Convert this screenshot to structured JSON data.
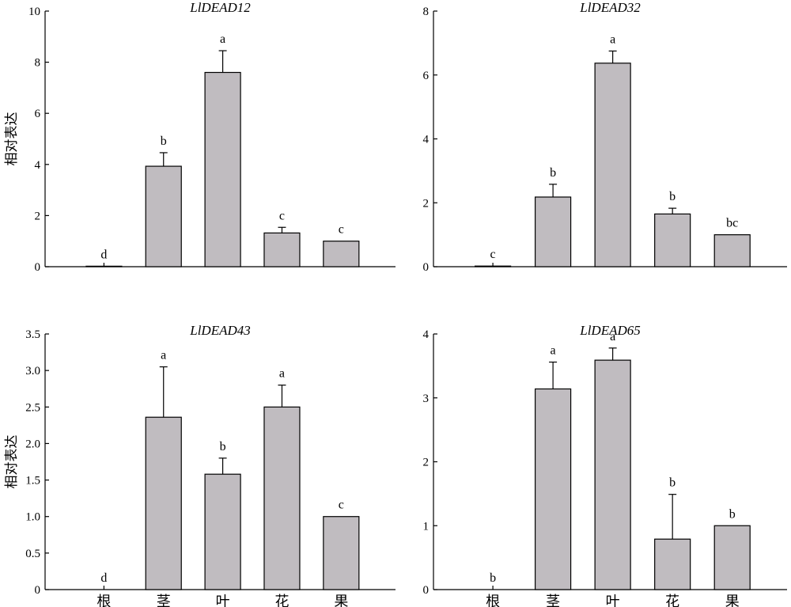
{
  "colors": {
    "bar_fill": "#c0bcc0",
    "stroke": "#000000"
  },
  "chart_data": [
    {
      "type": "bar",
      "title": "LlDEAD12",
      "ylabel": "相对表达",
      "xlabel": "",
      "categories": [
        "根",
        "茎",
        "叶",
        "花",
        "果"
      ],
      "values": [
        0.02,
        3.93,
        7.6,
        1.32,
        1.0
      ],
      "errors": [
        0.0,
        0.53,
        0.85,
        0.22,
        0.0
      ],
      "letters": [
        "d",
        "b",
        "a",
        "c",
        "c"
      ],
      "ylim": [
        0,
        10
      ],
      "yticks": [
        0,
        2,
        4,
        6,
        8,
        10
      ],
      "ytick_labels": [
        "0",
        "2",
        "4",
        "6",
        "8",
        "10"
      ],
      "show_category_labels": false
    },
    {
      "type": "bar",
      "title": "LlDEAD32",
      "ylabel": "",
      "xlabel": "",
      "categories": [
        "根",
        "茎",
        "叶",
        "花",
        "果"
      ],
      "values": [
        0.02,
        2.18,
        6.37,
        1.65,
        1.0
      ],
      "errors": [
        0.0,
        0.4,
        0.38,
        0.18,
        0.0
      ],
      "letters": [
        "c",
        "b",
        "a",
        "b",
        "bc"
      ],
      "ylim": [
        0,
        8
      ],
      "yticks": [
        0,
        2,
        4,
        6,
        8
      ],
      "ytick_labels": [
        "0",
        "2",
        "4",
        "6",
        "8"
      ],
      "show_category_labels": false
    },
    {
      "type": "bar",
      "title": "LlDEAD43",
      "ylabel": "相对表达",
      "xlabel": "",
      "categories": [
        "根",
        "茎",
        "叶",
        "花",
        "果"
      ],
      "values": [
        0.0,
        2.36,
        1.58,
        2.5,
        1.0
      ],
      "errors": [
        0.0,
        0.69,
        0.22,
        0.3,
        0.0
      ],
      "letters": [
        "d",
        "a",
        "b",
        "a",
        "c"
      ],
      "ylim": [
        0,
        3.5
      ],
      "yticks": [
        0,
        0.5,
        1.0,
        1.5,
        2.0,
        2.5,
        3.0,
        3.5
      ],
      "ytick_labels": [
        "0",
        "0.5",
        "1.0",
        "1.5",
        "2.0",
        "2.5",
        "3.0",
        "3.5"
      ],
      "show_category_labels": true
    },
    {
      "type": "bar",
      "title": "LlDEAD65",
      "ylabel": "",
      "xlabel": "",
      "categories": [
        "根",
        "茎",
        "叶",
        "花",
        "果"
      ],
      "values": [
        0.0,
        3.14,
        3.59,
        0.79,
        1.0
      ],
      "errors": [
        0.0,
        0.42,
        0.19,
        0.7,
        0.0
      ],
      "letters": [
        "b",
        "a",
        "a",
        "b",
        "b"
      ],
      "ylim": [
        0,
        4
      ],
      "yticks": [
        0,
        1,
        2,
        3,
        4
      ],
      "ytick_labels": [
        "0",
        "1",
        "2",
        "3",
        "4"
      ],
      "show_category_labels": true
    }
  ]
}
